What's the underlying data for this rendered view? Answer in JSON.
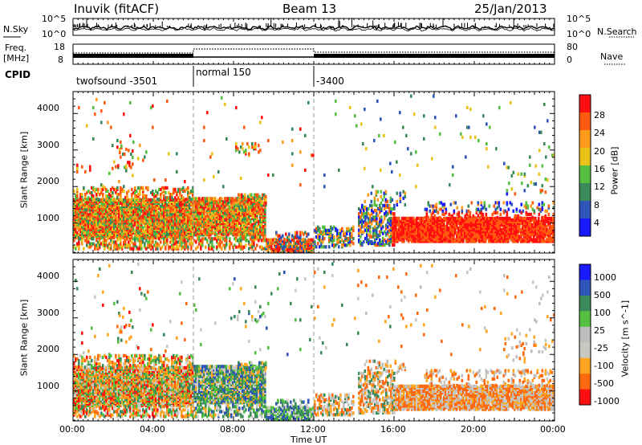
{
  "header": {
    "radar": "Inuvik (fitACF)",
    "beam": "Beam 13",
    "date": "25/Jan/2013"
  },
  "summary": {
    "left_top": "N.Sky",
    "left_mid_1": "Freq.",
    "left_mid_2": "[MHz]",
    "left_cpid": "CPID",
    "right_top": "N.Search",
    "right_mid": "Nave",
    "nsky_ticks": [
      "10^5",
      "10^0"
    ],
    "nsearch_ticks": [
      "10^5",
      "10^0"
    ],
    "freq_ticks": [
      "18",
      "8"
    ],
    "nave_ticks": [
      "80",
      "0"
    ],
    "cpid_segments": [
      {
        "label": "twofsound  -3501",
        "start_h": 0
      },
      {
        "label": "normal 150",
        "start_h": 6
      },
      {
        "label": "-3400",
        "start_h": 12
      }
    ]
  },
  "colors": {
    "power": [
      "#1a1aff",
      "#2f55b8",
      "#3a8a5a",
      "#55c040",
      "#e9c31a",
      "#ff9a1a",
      "#ff5a10",
      "#ff0f0f"
    ],
    "velocity": [
      "#ff0f0f",
      "#ff6a10",
      "#ffa51f",
      "#c8c8c0",
      "#bebebe",
      "#55c040",
      "#3a8a5a",
      "#2f55b8",
      "#1a1aff"
    ]
  },
  "chart_data": [
    {
      "type": "heatmap",
      "panel": "power",
      "xlabel": "",
      "ylabel": "Slant Range [km]",
      "xlim_hours": [
        0,
        24
      ],
      "ylim_km": [
        180,
        4600
      ],
      "yticks": [
        "1000",
        "2000",
        "3000",
        "4000"
      ],
      "colorbar_label": "Power [dB]",
      "colorbar_ticks": [
        "4",
        "8",
        "12",
        "16",
        "20",
        "24",
        "28"
      ],
      "mode_changes_h": [
        6,
        12
      ]
    },
    {
      "type": "heatmap",
      "panel": "velocity",
      "xlabel": "Time UT",
      "ylabel": "Slant Range [km]",
      "xlim_hours": [
        0,
        24
      ],
      "ylim_km": [
        180,
        4600
      ],
      "yticks": [
        "1000",
        "2000",
        "3000",
        "4000"
      ],
      "xticks": [
        "00:00",
        "04:00",
        "08:00",
        "12:00",
        "16:00",
        "20:00",
        "00:00"
      ],
      "colorbar_label": "Velocity [m s^-1]",
      "colorbar_ticks": [
        "1000",
        "500",
        "100",
        "25",
        "-25",
        "-100",
        "-500",
        "-1000"
      ],
      "mode_changes_h": [
        6,
        12
      ]
    }
  ]
}
